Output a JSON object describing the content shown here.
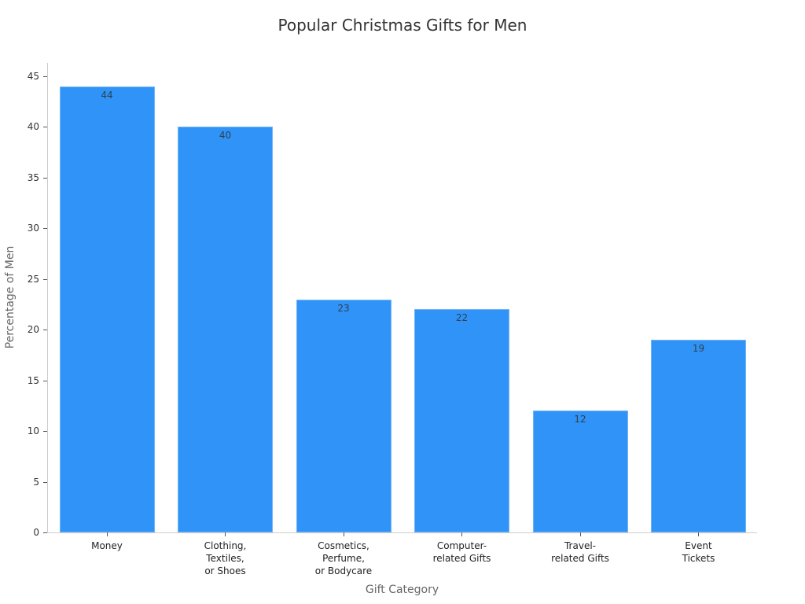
{
  "chart_data": {
    "type": "bar",
    "title": "Popular Christmas Gifts for Men",
    "xlabel": "Gift Category",
    "ylabel": "Percentage of Men",
    "categories": [
      "Money",
      "Clothing,\nTextiles,\nor Shoes",
      "Cosmetics,\nPerfume,\nor Bodycare",
      "Computer-\nrelated Gifts",
      "Travel-\nrelated Gifts",
      "Event\nTickets"
    ],
    "values": [
      44,
      40,
      23,
      22,
      12,
      19
    ],
    "data_labels": [
      "44",
      "40",
      "23",
      "22",
      "12",
      "19"
    ],
    "yticks": [
      "0",
      "5",
      "10",
      "15",
      "20",
      "25",
      "30",
      "35",
      "40",
      "45"
    ],
    "ylim": [
      0,
      46
    ],
    "grid": false,
    "legend": null,
    "bar_color": "#2f93f7"
  }
}
